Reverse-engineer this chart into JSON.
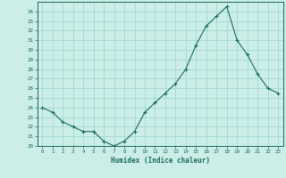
{
  "x": [
    0,
    1,
    2,
    3,
    4,
    5,
    6,
    7,
    8,
    9,
    10,
    11,
    12,
    13,
    14,
    15,
    16,
    17,
    18,
    19,
    20,
    21,
    22,
    23
  ],
  "y": [
    24.0,
    23.5,
    22.5,
    22.0,
    21.5,
    21.5,
    20.5,
    20.0,
    20.5,
    21.5,
    23.5,
    24.5,
    25.5,
    26.5,
    28.0,
    30.5,
    32.5,
    33.5,
    34.5,
    31.0,
    29.5,
    27.5,
    26.0,
    25.5
  ],
  "xlabel": "Humidex (Indice chaleur)",
  "ylabel": "",
  "ylim": [
    20,
    35
  ],
  "xlim_min": -0.5,
  "xlim_max": 23.5,
  "yticks": [
    20,
    21,
    22,
    23,
    24,
    25,
    26,
    27,
    28,
    29,
    30,
    31,
    32,
    33,
    34
  ],
  "xticks": [
    0,
    1,
    2,
    3,
    4,
    5,
    6,
    7,
    8,
    9,
    10,
    11,
    12,
    13,
    14,
    15,
    16,
    17,
    18,
    19,
    20,
    21,
    22,
    23
  ],
  "line_color": "#1a6b5a",
  "marker": "+",
  "bg_color": "#cceee8",
  "grid_color": "#99d5cc",
  "label_color": "#1a6b5a",
  "tick_color": "#1a6b5a",
  "spine_color": "#1a6b5a"
}
